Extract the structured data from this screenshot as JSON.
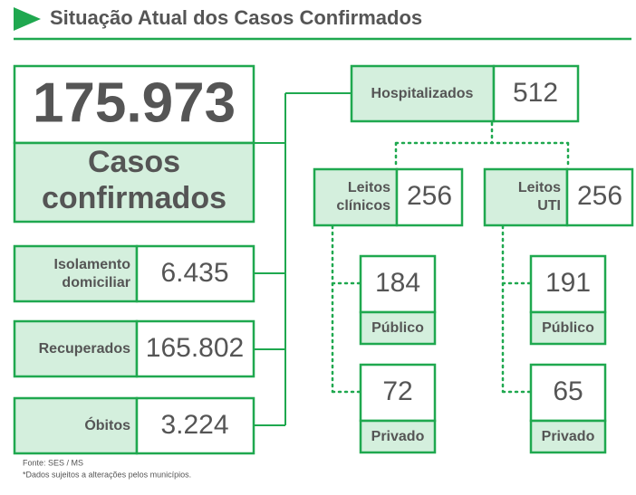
{
  "header": {
    "title": "Situação Atual dos Casos Confirmados"
  },
  "total": {
    "value": "175.973",
    "label": [
      "Casos",
      "confirmados"
    ]
  },
  "status": [
    {
      "label": [
        "Isolamento",
        "domiciliar"
      ],
      "value": "6.435"
    },
    {
      "label": [
        "Recuperados"
      ],
      "value": "165.802"
    },
    {
      "label": [
        "Óbitos"
      ],
      "value": "3.224"
    }
  ],
  "hospital": {
    "label": [
      "Hospitalizados"
    ],
    "value": "512"
  },
  "beds": [
    {
      "label": [
        "Leitos",
        "clínicos"
      ],
      "value": "256",
      "split": [
        {
          "value": "184",
          "label": "Público"
        },
        {
          "value": "72",
          "label": "Privado"
        }
      ]
    },
    {
      "label": [
        "Leitos",
        "UTI"
      ],
      "value": "256",
      "split": [
        {
          "value": "191",
          "label": "Público"
        },
        {
          "value": "65",
          "label": "Privado"
        }
      ]
    }
  ],
  "footer": {
    "source": "Fonte: SES / MS",
    "note": "*Dados sujeitos a alterações pelos municípios."
  }
}
